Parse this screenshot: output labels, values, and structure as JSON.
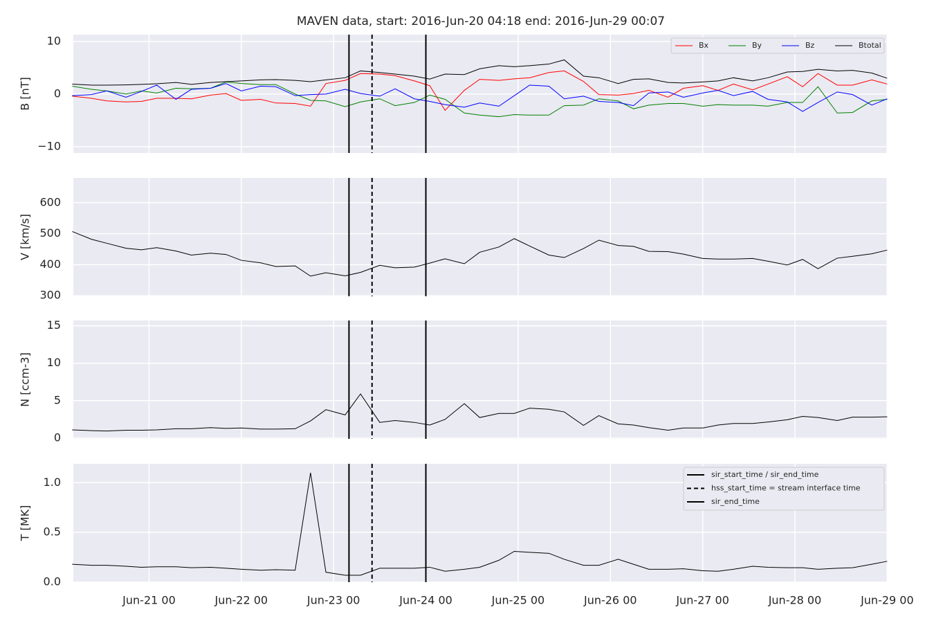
{
  "chart_data": {
    "type": "line",
    "title": "MAVEN data, start: 2016-Jun-20 04:18  end: 2016-Jun-29 00:07",
    "x": [
      "Jun-20 04",
      "Jun-20 09",
      "Jun-20 13",
      "Jun-20 18",
      "Jun-20 22",
      "Jun-21 02",
      "Jun-21 07",
      "Jun-21 11",
      "Jun-21 16",
      "Jun-21 20",
      "Jun-22 00",
      "Jun-22 05",
      "Jun-22 09",
      "Jun-22 14",
      "Jun-22 18",
      "Jun-22 22",
      "Jun-23 03",
      "Jun-23 07",
      "Jun-23 12",
      "Jun-23 16",
      "Jun-23 21",
      "Jun-24 01",
      "Jun-24 05",
      "Jun-24 10",
      "Jun-24 14",
      "Jun-24 19",
      "Jun-24 23",
      "Jun-25 03",
      "Jun-25 08",
      "Jun-25 12",
      "Jun-25 17",
      "Jun-25 21",
      "Jun-26 02",
      "Jun-26 06",
      "Jun-26 10",
      "Jun-26 15",
      "Jun-26 19",
      "Jun-27 00",
      "Jun-27 04",
      "Jun-27 08",
      "Jun-27 13",
      "Jun-27 17",
      "Jun-27 22",
      "Jun-28 02",
      "Jun-28 06",
      "Jun-28 11",
      "Jun-28 15",
      "Jun-28 20",
      "Jun-29 00"
    ],
    "xlim": [
      "Jun-20 04:18",
      "Jun-29 00:07"
    ],
    "xticks": [
      "Jun-21 00",
      "Jun-22 00",
      "Jun-23 00",
      "Jun-24 00",
      "Jun-25 00",
      "Jun-26 00",
      "Jun-27 00",
      "Jun-28 00",
      "Jun-29 00"
    ],
    "grid": true,
    "vlines": [
      {
        "x": "Jun-23 04",
        "label": "sir_start_time / sir_end_time",
        "dashed": false,
        "color": "#000000"
      },
      {
        "x": "Jun-23 10",
        "label": "hss_start_time = stream interface time",
        "dashed": true,
        "color": "#000000"
      },
      {
        "x": "Jun-24 00",
        "label": "sir_end_time",
        "dashed": false,
        "color": "#000000"
      }
    ],
    "panels": [
      {
        "ylabel": "B [nT]",
        "ylim": [
          -11.2,
          11.3
        ],
        "yticks": [
          {
            "value": -10,
            "label": "−10"
          },
          0,
          10
        ],
        "legend": "upper right",
        "series": [
          {
            "name": "Bx",
            "color": "#ff0000",
            "values": [
              -0.4,
              -0.8,
              -1.3,
              -1.5,
              -1.4,
              -0.8,
              -0.8,
              -0.9,
              -0.2,
              0.1,
              -1.2,
              -1.0,
              -1.7,
              -1.8,
              -2.3,
              2.0,
              2.6,
              3.9,
              3.8,
              3.5,
              2.5,
              1.6,
              -3.1,
              0.7,
              2.8,
              2.6,
              2.9,
              3.1,
              4.1,
              4.4,
              2.4,
              -0.1,
              -0.2,
              0.1,
              0.7,
              -0.6,
              1.1,
              1.6,
              0.7,
              1.9,
              0.8,
              1.9,
              3.3,
              1.4,
              3.9,
              1.7,
              1.7,
              2.7,
              1.9
            ]
          },
          {
            "name": "By",
            "color": "#008000",
            "values": [
              1.5,
              0.9,
              0.6,
              0.0,
              0.6,
              0.2,
              1.1,
              1.0,
              1.1,
              2.3,
              2.0,
              1.8,
              1.8,
              0.0,
              -1.2,
              -1.3,
              -2.4,
              -1.5,
              -0.9,
              -2.2,
              -1.6,
              -0.2,
              -1.0,
              -3.6,
              -4.0,
              -4.3,
              -3.9,
              -4.0,
              -4.0,
              -2.2,
              -2.1,
              -0.9,
              -1.3,
              -2.8,
              -2.1,
              -1.8,
              -1.8,
              -2.3,
              -2.0,
              -2.1,
              -2.1,
              -2.3,
              -1.6,
              -1.6,
              1.4,
              -3.6,
              -3.5,
              -1.3,
              -1.0
            ]
          },
          {
            "name": "Bz",
            "color": "#0000ff",
            "values": [
              -0.3,
              -0.1,
              0.6,
              -0.6,
              0.5,
              1.7,
              -1.0,
              0.9,
              1.1,
              2.0,
              0.6,
              1.5,
              1.4,
              -0.3,
              -0.1,
              0.0,
              0.9,
              0.1,
              -0.4,
              1.0,
              -0.9,
              -1.4,
              -2.0,
              -2.5,
              -1.7,
              -2.3,
              -0.3,
              1.7,
              1.5,
              -0.9,
              -0.4,
              -1.4,
              -1.6,
              -2.2,
              0.2,
              0.4,
              -0.6,
              0.2,
              0.7,
              -0.3,
              0.5,
              -1.0,
              -1.5,
              -3.3,
              -1.6,
              0.4,
              -0.1,
              -2.1,
              -0.9
            ]
          },
          {
            "name": "Btotal",
            "color": "#000000",
            "values": [
              1.9,
              1.7,
              1.7,
              1.75,
              1.85,
              1.95,
              2.2,
              1.85,
              2.2,
              2.35,
              2.5,
              2.7,
              2.75,
              2.6,
              2.35,
              2.7,
              3.1,
              4.4,
              4.1,
              3.8,
              3.4,
              2.85,
              3.8,
              3.7,
              4.8,
              5.4,
              5.2,
              5.4,
              5.7,
              6.5,
              3.4,
              3.1,
              2.0,
              2.8,
              2.9,
              2.2,
              2.1,
              2.3,
              2.5,
              3.1,
              2.5,
              3.1,
              4.2,
              4.3,
              4.7,
              4.4,
              4.5,
              4.0,
              3.0
            ]
          }
        ]
      },
      {
        "ylabel": "V [km/s]",
        "ylim": [
          298,
          680
        ],
        "yticks": [
          300,
          400,
          500,
          600
        ],
        "series": [
          {
            "color": "#000000",
            "values": [
              507,
              482,
              469,
              453,
              448,
              455,
              444,
              431,
              437,
              433,
              414,
              406,
              394,
              396,
              363,
              374,
              364,
              375,
              398,
              390,
              392,
              405,
              419,
              403,
              440,
              457,
              484,
              460,
              431,
              423,
              452,
              479,
              462,
              459,
              443,
              442,
              434,
              420,
              418,
              418,
              420,
              411,
              399,
              417,
              387,
              421,
              427,
              435,
              447
            ]
          }
        ]
      },
      {
        "ylabel": "N [ccm-3]",
        "ylim": [
          -0.1,
          15.7
        ],
        "yticks": [
          0,
          5,
          10,
          15
        ],
        "series": [
          {
            "color": "#000000",
            "values": [
              1.1,
              1.0,
              0.95,
              1.05,
              1.05,
              1.1,
              1.25,
              1.25,
              1.4,
              1.3,
              1.35,
              1.2,
              1.2,
              1.25,
              2.3,
              3.8,
              3.1,
              5.9,
              2.1,
              2.35,
              2.1,
              1.75,
              2.5,
              4.6,
              2.75,
              3.3,
              3.3,
              4.0,
              3.85,
              3.5,
              1.7,
              3.0,
              1.9,
              1.75,
              1.4,
              1.05,
              1.35,
              1.35,
              1.75,
              1.95,
              1.95,
              2.15,
              2.45,
              2.9,
              2.75,
              2.35,
              2.8,
              2.8,
              2.85
            ]
          }
        ]
      },
      {
        "ylabel": "T [MK]",
        "ylim": [
          0,
          1.19
        ],
        "yticks": [
          {
            "value": 0,
            "label": "0.0"
          },
          0.5,
          {
            "value": 1,
            "label": "1.0"
          }
        ],
        "vline_legend": "upper right",
        "series": [
          {
            "color": "#000000",
            "values": [
              0.18,
              0.17,
              0.17,
              0.16,
              0.15,
              0.155,
              0.155,
              0.145,
              0.15,
              0.14,
              0.13,
              0.12,
              0.125,
              0.12,
              1.1,
              0.1,
              0.07,
              0.07,
              0.14,
              0.14,
              0.14,
              0.15,
              0.11,
              0.13,
              0.15,
              0.22,
              0.31,
              0.3,
              0.29,
              0.23,
              0.17,
              0.17,
              0.23,
              0.18,
              0.13,
              0.13,
              0.135,
              0.115,
              0.11,
              0.13,
              0.16,
              0.15,
              0.145,
              0.145,
              0.13,
              0.14,
              0.145,
              0.18,
              0.21
            ]
          }
        ]
      }
    ]
  }
}
